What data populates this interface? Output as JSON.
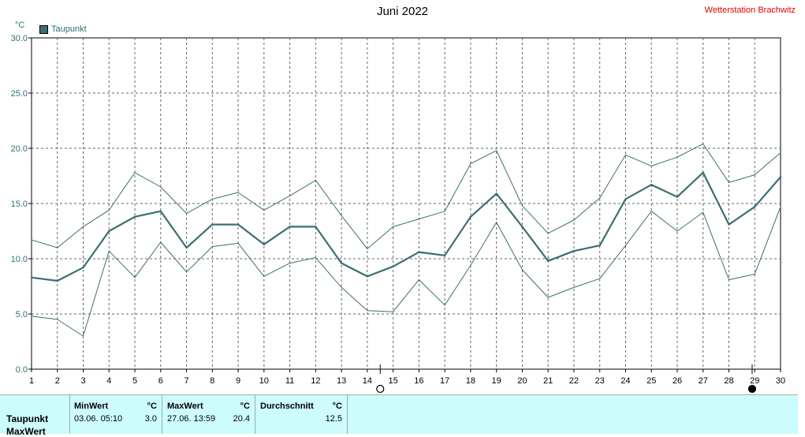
{
  "header": {
    "title": "Juni 2022",
    "station": "Wetterstation Brachwitz",
    "unit": "°C",
    "legend": "Taupunkt"
  },
  "chart_data": {
    "type": "line",
    "title": "Juni 2022",
    "ylabel": "°C",
    "ylim": [
      0,
      30
    ],
    "yticks": [
      "0.0",
      "5.0",
      "10.0",
      "15.0",
      "20.0",
      "25.0",
      "30.0"
    ],
    "x": [
      1,
      2,
      3,
      4,
      5,
      6,
      7,
      8,
      9,
      10,
      11,
      12,
      13,
      14,
      15,
      16,
      17,
      18,
      19,
      20,
      21,
      22,
      23,
      24,
      25,
      26,
      27,
      28,
      29,
      30
    ],
    "grid": true,
    "legend_position": "top-left",
    "series": [
      {
        "name": "Taupunkt",
        "role": "mean",
        "color": "#3c6e72",
        "values": [
          8.3,
          8.0,
          9.2,
          12.5,
          13.8,
          14.3,
          11.0,
          13.1,
          13.1,
          11.3,
          12.9,
          12.9,
          9.6,
          8.4,
          9.3,
          10.6,
          10.3,
          13.8,
          15.9,
          12.9,
          9.8,
          10.7,
          11.2,
          15.4,
          16.7,
          15.6,
          17.8,
          13.1,
          14.7,
          17.4
        ]
      },
      {
        "role": "max",
        "color": "#3c6e72",
        "values": [
          11.7,
          11.0,
          12.9,
          14.4,
          17.8,
          16.5,
          14.1,
          15.4,
          16.0,
          14.4,
          15.7,
          17.1,
          13.9,
          10.9,
          12.9,
          13.6,
          14.3,
          18.6,
          19.8,
          14.8,
          12.3,
          13.5,
          15.5,
          19.4,
          18.4,
          19.2,
          20.4,
          16.9,
          17.6,
          19.6
        ]
      },
      {
        "role": "min",
        "color": "#3c6e72",
        "values": [
          4.8,
          4.5,
          3.0,
          10.7,
          8.3,
          11.5,
          8.8,
          11.1,
          11.4,
          8.4,
          9.6,
          10.1,
          7.4,
          5.3,
          5.2,
          8.1,
          5.8,
          9.4,
          13.3,
          9.0,
          6.5,
          7.4,
          8.2,
          11.2,
          14.3,
          12.5,
          14.2,
          8.1,
          8.6,
          14.7
        ]
      }
    ],
    "moon_markers": [
      {
        "day": 14.5,
        "phase": "full-moon"
      },
      {
        "day": 28.9,
        "phase": "new-moon"
      }
    ]
  },
  "stats": {
    "row_labels": [
      "Taupunkt",
      "MaxWert"
    ],
    "min_header": "MinWert",
    "min_unit": "°C",
    "min_date": "03.06.  05:10",
    "min_value": "3.0",
    "max_header": "MaxWert",
    "max_unit": "°C",
    "max_date": "27.06.  13:59",
    "max_value": "20.4",
    "avg_header": "Durchschnitt",
    "avg_unit": "°C",
    "avg_value": "12.5"
  }
}
